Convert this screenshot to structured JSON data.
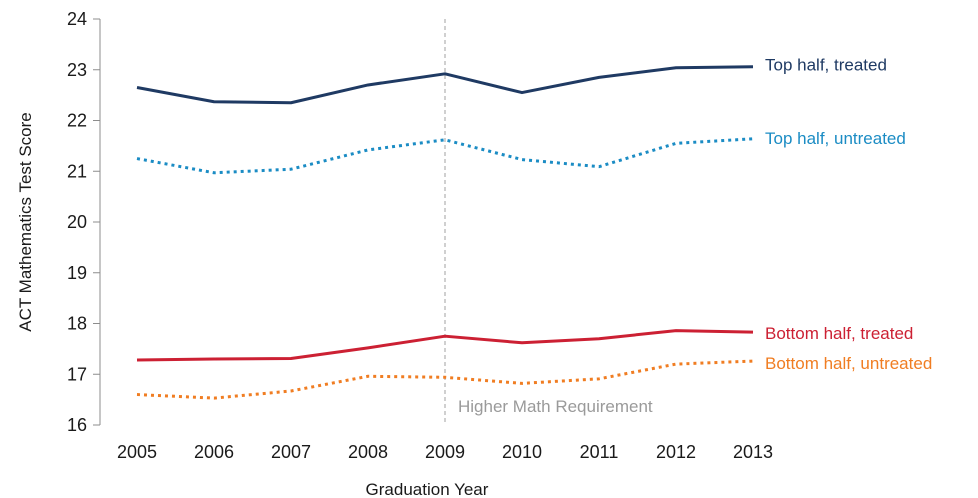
{
  "chart_data": {
    "type": "line",
    "title": "",
    "xlabel": "Graduation Year",
    "ylabel": "ACT Mathematics Test Score",
    "categories": [
      "2005",
      "2006",
      "2007",
      "2008",
      "2009",
      "2010",
      "2011",
      "2012",
      "2013"
    ],
    "ylim": [
      16,
      24
    ],
    "yticks": [
      16,
      17,
      18,
      19,
      20,
      21,
      22,
      23,
      24
    ],
    "grid": false,
    "legend": "inline labels at right end of each series",
    "annotation": {
      "label": "Higher Math Requirement",
      "at": "2009",
      "style": "dashed vertical line",
      "color": "#a0a0a0"
    },
    "series": [
      {
        "name": "Top half, treated",
        "values": [
          22.65,
          22.37,
          22.35,
          22.7,
          22.92,
          22.55,
          22.85,
          23.04,
          23.06
        ],
        "color": "#1f3a63",
        "style": "solid"
      },
      {
        "name": "Top half, untreated",
        "values": [
          21.25,
          20.97,
          21.04,
          21.42,
          21.62,
          21.23,
          21.09,
          21.55,
          21.64
        ],
        "color": "#1b8cc4",
        "style": "dotted"
      },
      {
        "name": "Bottom half, treated",
        "values": [
          17.28,
          17.3,
          17.31,
          17.52,
          17.75,
          17.62,
          17.7,
          17.86,
          17.83
        ],
        "color": "#cc2033",
        "style": "solid"
      },
      {
        "name": "Bottom half, untreated",
        "values": [
          16.6,
          16.53,
          16.67,
          16.96,
          16.94,
          16.82,
          16.91,
          17.2,
          17.26
        ],
        "color": "#f07d22",
        "style": "dotted"
      }
    ]
  }
}
